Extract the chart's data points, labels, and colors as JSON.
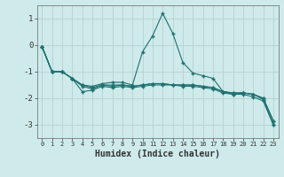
{
  "xlabel": "Humidex (Indice chaleur)",
  "background_color": "#ceeaea",
  "grid_color": "#b8d0d0",
  "line_color": "#1e7070",
  "x_values": [
    0,
    1,
    2,
    3,
    4,
    5,
    6,
    7,
    8,
    9,
    10,
    11,
    12,
    13,
    14,
    15,
    16,
    17,
    18,
    19,
    20,
    21,
    22,
    23
  ],
  "series": {
    "line1": [
      -0.05,
      -1.0,
      -1.0,
      -1.25,
      -1.5,
      -1.55,
      -1.45,
      -1.4,
      -1.4,
      -1.5,
      -0.25,
      0.35,
      1.2,
      0.45,
      -0.65,
      -1.05,
      -1.15,
      -1.25,
      -1.75,
      -1.85,
      -1.8,
      -1.85,
      -2.05,
      -3.0
    ],
    "line2": [
      -0.05,
      -1.0,
      -1.0,
      -1.25,
      -1.55,
      -1.65,
      -1.5,
      -1.55,
      -1.5,
      -1.55,
      -1.5,
      -1.45,
      -1.45,
      -1.5,
      -1.5,
      -1.5,
      -1.55,
      -1.6,
      -1.75,
      -1.8,
      -1.8,
      -1.85,
      -2.0,
      -2.85
    ],
    "line3": [
      -0.05,
      -1.0,
      -1.0,
      -1.25,
      -1.75,
      -1.7,
      -1.55,
      -1.6,
      -1.55,
      -1.6,
      -1.55,
      -1.5,
      -1.5,
      -1.5,
      -1.55,
      -1.55,
      -1.6,
      -1.65,
      -1.8,
      -1.85,
      -1.85,
      -1.95,
      -2.1,
      -3.0
    ],
    "line4": [
      -0.05,
      -1.0,
      -1.0,
      -1.25,
      -1.5,
      -1.6,
      -1.5,
      -1.5,
      -1.5,
      -1.55,
      -1.5,
      -1.45,
      -1.45,
      -1.5,
      -1.5,
      -1.5,
      -1.55,
      -1.6,
      -1.75,
      -1.8,
      -1.8,
      -1.85,
      -2.0,
      -2.85
    ]
  },
  "ylim": [
    -3.5,
    1.5
  ],
  "yticks": [
    -3,
    -2,
    -1,
    0,
    1
  ],
  "xlim": [
    -0.5,
    23.5
  ],
  "xticks": [
    0,
    1,
    2,
    3,
    4,
    5,
    6,
    7,
    8,
    9,
    10,
    11,
    12,
    13,
    14,
    15,
    16,
    17,
    18,
    19,
    20,
    21,
    22,
    23
  ]
}
